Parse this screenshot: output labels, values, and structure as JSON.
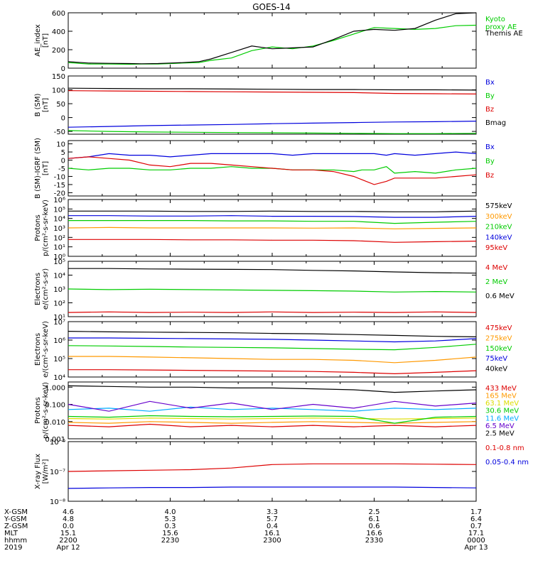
{
  "title": "GOES-14",
  "colors": {
    "black": "#000000",
    "red": "#dd0000",
    "green": "#00cc00",
    "blue": "#0000dd",
    "orange": "#ff9900",
    "cyan": "#00aaff",
    "purple": "#6600cc",
    "yellow": "#dddd00"
  },
  "chart_data": [
    {
      "type": "line",
      "id": "ae",
      "ylabel": [
        "AE_index",
        "[nT]"
      ],
      "scale": "linear",
      "ylim": [
        0,
        600
      ],
      "ticks": [
        {
          "v": 0,
          "t": "0"
        },
        {
          "v": 200,
          "t": "200"
        },
        {
          "v": 400,
          "t": "400"
        },
        {
          "v": 600,
          "t": "600"
        }
      ],
      "x": [
        0,
        5,
        10,
        15,
        18,
        22,
        25,
        28,
        32,
        35,
        40,
        45,
        50,
        55,
        60,
        65,
        70,
        75,
        80,
        85,
        90,
        95,
        100
      ],
      "series": [
        {
          "name": "Kyoto\nproxy AE",
          "color": "#00cc00",
          "values": [
            60,
            45,
            45,
            42,
            45,
            45,
            50,
            55,
            60,
            85,
            110,
            190,
            230,
            210,
            240,
            300,
            370,
            440,
            430,
            420,
            430,
            460,
            465
          ]
        },
        {
          "name": "Themis AE",
          "color": "#000000",
          "values": [
            70,
            55,
            52,
            50,
            48,
            50,
            55,
            60,
            70,
            100,
            170,
            240,
            210,
            220,
            230,
            310,
            400,
            420,
            410,
            430,
            520,
            590,
            600
          ]
        }
      ]
    },
    {
      "type": "line",
      "id": "b_sm",
      "ylabel": [
        "B (SM)",
        "[nT]"
      ],
      "scale": "linear",
      "ylim": [
        -60,
        150
      ],
      "ticks": [
        {
          "v": -50,
          "t": "-50"
        },
        {
          "v": 0,
          "t": "0"
        },
        {
          "v": 50,
          "t": "50"
        },
        {
          "v": 100,
          "t": "100"
        },
        {
          "v": 150,
          "t": "150"
        }
      ],
      "x": [
        0,
        10,
        20,
        30,
        40,
        50,
        60,
        70,
        80,
        90,
        100
      ],
      "series": [
        {
          "name": "Bx",
          "color": "#0000dd",
          "values": [
            -35,
            -32,
            -29,
            -27,
            -25,
            -22,
            -20,
            -18,
            -16,
            -15,
            -13
          ]
        },
        {
          "name": "By",
          "color": "#00cc00",
          "values": [
            -47,
            -50,
            -52,
            -53,
            -54,
            -55,
            -56,
            -57,
            -58,
            -58,
            -57
          ]
        },
        {
          "name": "Bz",
          "color": "#dd0000",
          "values": [
            97,
            96,
            95,
            94,
            93,
            92,
            91,
            90,
            87,
            86,
            85
          ]
        },
        {
          "name": "Bmag",
          "color": "#000000",
          "values": [
            106,
            105,
            104,
            104,
            103,
            102,
            101,
            101,
            100,
            100,
            99
          ]
        }
      ]
    },
    {
      "type": "line",
      "id": "b_igrf",
      "ylabel": [
        "B (SM)-IGRF (SM)",
        "[nT]"
      ],
      "scale": "linear",
      "ylim": [
        -22,
        12
      ],
      "ticks": [
        {
          "v": 10,
          "t": "10"
        },
        {
          "v": 5,
          "t": "5"
        },
        {
          "v": 0,
          "t": "0"
        },
        {
          "v": -5,
          "t": "-5"
        },
        {
          "v": -10,
          "t": "-10"
        },
        {
          "v": -15,
          "t": "-15"
        },
        {
          "v": -20,
          "t": "-20"
        }
      ],
      "x": [
        0,
        5,
        10,
        15,
        20,
        25,
        30,
        35,
        40,
        45,
        50,
        55,
        60,
        65,
        70,
        72,
        75,
        78,
        80,
        85,
        90,
        95,
        100
      ],
      "series": [
        {
          "name": "Bx",
          "color": "#0000dd",
          "values": [
            1,
            2,
            4,
            3,
            3,
            2,
            3,
            4,
            4,
            4,
            4,
            3,
            4,
            4,
            4,
            4,
            4,
            3,
            4,
            3,
            4,
            5,
            4
          ]
        },
        {
          "name": "By",
          "color": "#00cc00",
          "values": [
            -5,
            -6,
            -5,
            -5,
            -6,
            -6,
            -5,
            -5,
            -4,
            -5,
            -5,
            -6,
            -6,
            -6,
            -7,
            -6,
            -6,
            -4,
            -8,
            -7,
            -8,
            -6,
            -5
          ]
        },
        {
          "name": "Bz",
          "color": "#dd0000",
          "values": [
            1,
            2,
            1,
            0,
            -3,
            -4,
            -2,
            -2,
            -3,
            -4,
            -5,
            -6,
            -6,
            -7,
            -10,
            -12,
            -15,
            -13,
            -11,
            -11,
            -11,
            -10,
            -9
          ]
        }
      ]
    },
    {
      "type": "line",
      "id": "protons1",
      "ylabel": [
        "Protons",
        "p/(cm²-s-sr-keV)"
      ],
      "scale": "log",
      "ylim": [
        1,
        1000000
      ],
      "ticks": [
        {
          "v": 1,
          "t": "10⁰"
        },
        {
          "v": 10,
          "t": "10¹"
        },
        {
          "v": 100,
          "t": "10²"
        },
        {
          "v": 1000,
          "t": "10³"
        },
        {
          "v": 10000,
          "t": "10⁴"
        },
        {
          "v": 100000,
          "t": "10⁵"
        },
        {
          "v": 1000000,
          "t": "10⁶"
        }
      ],
      "x": [
        0,
        10,
        20,
        30,
        40,
        50,
        60,
        70,
        80,
        90,
        100
      ],
      "series": [
        {
          "name": "575keV",
          "color": "#000000",
          "values": [
            60000,
            60000,
            60000,
            55000,
            55000,
            60000,
            55000,
            55000,
            50000,
            50000,
            60000
          ]
        },
        {
          "name": "300keV",
          "color": "#ff9900",
          "values": [
            1000,
            1100,
            1000,
            1000,
            1000,
            1000,
            950,
            1000,
            800,
            900,
            1000
          ]
        },
        {
          "name": "210keV",
          "color": "#00cc00",
          "values": [
            6000,
            6000,
            6000,
            6000,
            5500,
            5500,
            5000,
            5000,
            3000,
            4000,
            5000
          ]
        },
        {
          "name": "140keV",
          "color": "#0000dd",
          "values": [
            20000,
            20000,
            18000,
            18000,
            20000,
            17000,
            17000,
            16000,
            13000,
            13000,
            17000
          ]
        },
        {
          "name": "95keV",
          "color": "#dd0000",
          "values": [
            60,
            60,
            60,
            55,
            55,
            50,
            50,
            45,
            30,
            35,
            40
          ]
        }
      ]
    },
    {
      "type": "line",
      "id": "electrons1",
      "ylabel": [
        "Electrons",
        "e/(cm²-s-sr)"
      ],
      "scale": "log",
      "ylim": [
        10,
        100000
      ],
      "ticks": [
        {
          "v": 10,
          "t": "10¹"
        },
        {
          "v": 100,
          "t": "10²"
        },
        {
          "v": 1000,
          "t": "10³"
        },
        {
          "v": 10000,
          "t": "10⁴"
        },
        {
          "v": 100000,
          "t": "10⁵"
        }
      ],
      "x": [
        0,
        10,
        20,
        30,
        40,
        50,
        60,
        70,
        80,
        90,
        100
      ],
      "series": [
        {
          "name": "4 MeV",
          "color": "#dd0000",
          "values": [
            20,
            22,
            20,
            21,
            20,
            22,
            20,
            21,
            20,
            22,
            20
          ]
        },
        {
          "name": "2 MeV",
          "color": "#00cc00",
          "values": [
            1000,
            900,
            950,
            900,
            850,
            800,
            750,
            700,
            600,
            650,
            600
          ]
        },
        {
          "name": "0.6 MeV",
          "color": "#000000",
          "values": [
            30000,
            30000,
            28000,
            27000,
            26000,
            25000,
            22000,
            20000,
            17000,
            15000,
            14000
          ]
        }
      ]
    },
    {
      "type": "line",
      "id": "electrons2",
      "ylabel": [
        "Electrons",
        "e/(cm²-s-sr-keV)"
      ],
      "scale": "log",
      "ylim": [
        10000,
        10000000
      ],
      "ticks": [
        {
          "v": 10000,
          "t": "10⁴"
        },
        {
          "v": 100000,
          "t": "10⁵"
        },
        {
          "v": 1000000,
          "t": "10⁶"
        },
        {
          "v": 10000000,
          "t": "10⁷"
        }
      ],
      "x": [
        0,
        10,
        20,
        30,
        40,
        50,
        60,
        70,
        80,
        90,
        100
      ],
      "series": [
        {
          "name": "475keV",
          "color": "#dd0000",
          "values": [
            25000,
            25000,
            24000,
            23000,
            22000,
            21000,
            20000,
            18000,
            15000,
            18000,
            22000
          ]
        },
        {
          "name": "275keV",
          "color": "#ff9900",
          "values": [
            130000,
            130000,
            120000,
            110000,
            100000,
            90000,
            90000,
            80000,
            60000,
            80000,
            120000
          ]
        },
        {
          "name": "150keV",
          "color": "#00cc00",
          "values": [
            500000,
            480000,
            450000,
            420000,
            400000,
            380000,
            350000,
            320000,
            300000,
            400000,
            600000
          ]
        },
        {
          "name": "75keV",
          "color": "#0000dd",
          "values": [
            1300000,
            1300000,
            1250000,
            1200000,
            1150000,
            1100000,
            1000000,
            900000,
            800000,
            900000,
            1200000
          ]
        },
        {
          "name": "40keV",
          "color": "#000000",
          "values": [
            3000000,
            2800000,
            2700000,
            2600000,
            2500000,
            2300000,
            2200000,
            2000000,
            1800000,
            1600000,
            1500000
          ]
        }
      ]
    },
    {
      "type": "line",
      "id": "protons2",
      "ylabel": [
        "Protons",
        "p/(cm²-s-sr-keV)"
      ],
      "scale": "log",
      "ylim": [
        0.001,
        2
      ],
      "ticks": [
        {
          "v": 0.001,
          "t": "0.001"
        },
        {
          "v": 0.01,
          "t": "0.010"
        },
        {
          "v": 0.1,
          "t": "0.100"
        },
        {
          "v": 1,
          "t": "1.000"
        }
      ],
      "x": [
        0,
        10,
        20,
        30,
        40,
        50,
        60,
        70,
        80,
        90,
        100
      ],
      "series": [
        {
          "name": "433 MeV",
          "color": "#dd0000",
          "values": [
            0.006,
            0.005,
            0.007,
            0.005,
            0.006,
            0.005,
            0.006,
            0.005,
            0.006,
            0.005,
            0.006
          ]
        },
        {
          "name": "165 MeV",
          "color": "#ff9900",
          "values": [
            0.009,
            0.008,
            0.01,
            0.009,
            0.008,
            0.009,
            0.01,
            0.009,
            0.008,
            0.009,
            0.01
          ]
        },
        {
          "name": "63.1 MeV",
          "color": "#dddd00",
          "values": [
            0.015,
            0.014,
            0.016,
            0.015,
            0.014,
            0.015,
            0.016,
            0.015,
            0.014,
            0.015,
            0.016
          ]
        },
        {
          "name": "30.6 MeV",
          "color": "#00cc00",
          "values": [
            0.02,
            0.018,
            0.022,
            0.02,
            0.019,
            0.02,
            0.021,
            0.02,
            0.008,
            0.018,
            0.02
          ]
        },
        {
          "name": "11.6 MeV",
          "color": "#00aaff",
          "values": [
            0.05,
            0.06,
            0.04,
            0.07,
            0.05,
            0.06,
            0.05,
            0.04,
            0.06,
            0.05,
            0.06
          ]
        },
        {
          "name": "6.5 MeV",
          "color": "#6600cc",
          "values": [
            0.1,
            0.04,
            0.15,
            0.06,
            0.12,
            0.05,
            0.1,
            0.06,
            0.15,
            0.08,
            0.12
          ]
        },
        {
          "name": "2.5 MeV",
          "color": "#000000",
          "values": [
            1.2,
            1.1,
            1.0,
            1.0,
            0.9,
            0.9,
            0.8,
            0.7,
            0.5,
            0.6,
            0.7
          ]
        }
      ]
    },
    {
      "type": "line",
      "id": "xray",
      "ylabel": [
        "X-ray Flux",
        "[W/m²]"
      ],
      "scale": "log",
      "ylim": [
        1e-08,
        1e-06
      ],
      "ticks": [
        {
          "v": 1e-08,
          "t": "10⁻⁸"
        },
        {
          "v": 1e-07,
          "t": "10⁻⁷"
        },
        {
          "v": 1e-06,
          "t": "10⁻⁶"
        }
      ],
      "x": [
        0,
        10,
        20,
        30,
        40,
        50,
        60,
        70,
        80,
        90,
        100
      ],
      "series": [
        {
          "name": "0.1-0.8 nm",
          "color": "#dd0000",
          "values": [
            1e-07,
            1.05e-07,
            1.1e-07,
            1.15e-07,
            1.3e-07,
            1.7e-07,
            1.8e-07,
            1.8e-07,
            1.8e-07,
            1.75e-07,
            1.7e-07
          ]
        },
        {
          "name": "0.05-0.4 nm",
          "color": "#0000dd",
          "values": [
            2.7e-08,
            2.8e-08,
            2.9e-08,
            2.9e-08,
            3e-08,
            3e-08,
            3e-08,
            3e-08,
            3e-08,
            2.9e-08,
            2.8e-08
          ]
        }
      ]
    }
  ],
  "xaxis": {
    "row_labels": [
      "X-GSM",
      "Y-GSM",
      "Z-GSM",
      "MLT",
      "hhmm",
      "2019"
    ],
    "columns": [
      {
        "x": 0,
        "vals": [
          "4.6",
          "4.8",
          "0.0",
          "15.1",
          "2200",
          "Apr 12"
        ]
      },
      {
        "x": 25,
        "vals": [
          "4.0",
          "5.3",
          "0.3",
          "15.6",
          "2230",
          ""
        ]
      },
      {
        "x": 50,
        "vals": [
          "3.3",
          "5.7",
          "0.4",
          "16.1",
          "2300",
          ""
        ]
      },
      {
        "x": 75,
        "vals": [
          "2.5",
          "6.1",
          "0.6",
          "16.6",
          "2330",
          ""
        ]
      },
      {
        "x": 100,
        "vals": [
          "1.7",
          "6.4",
          "0.7",
          "17.1",
          "0000",
          "Apr 13"
        ]
      }
    ]
  }
}
